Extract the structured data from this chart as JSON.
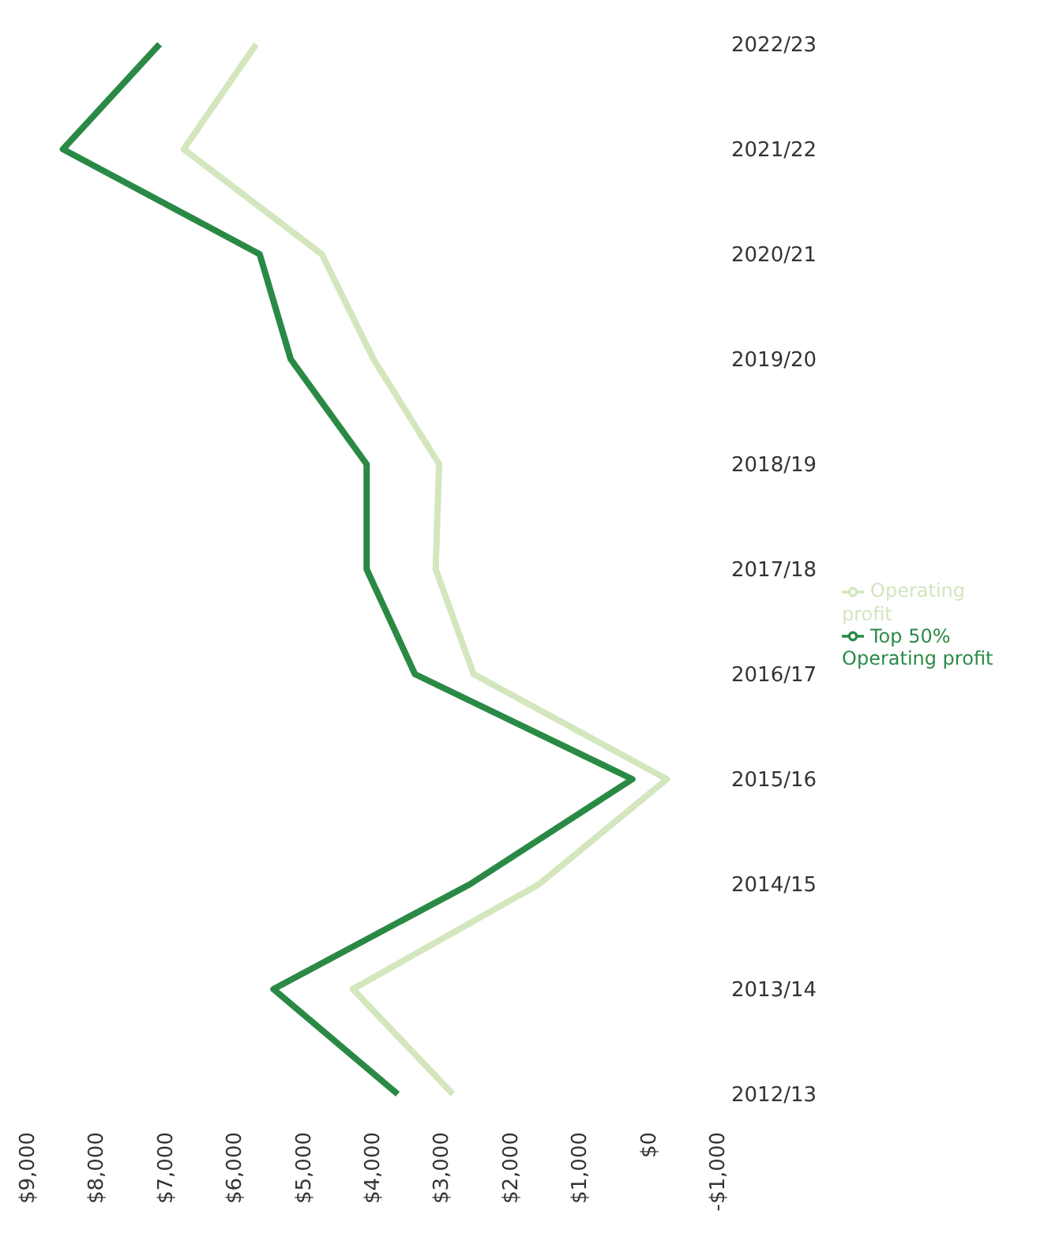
{
  "chart_data": {
    "type": "line",
    "orientation": "horizontal",
    "categories": [
      "2022/23",
      "2021/22",
      "2020/21",
      "2019/20",
      "2018/19",
      "2017/18",
      "2016/17",
      "2015/16",
      "2014/15",
      "2013/14",
      "2012/13"
    ],
    "series": [
      {
        "name": "Operating profit",
        "color": "#d3e6bd",
        "values": [
          5700,
          6750,
          4750,
          4000,
          3050,
          3100,
          2550,
          -250,
          1600,
          4300,
          2850
        ]
      },
      {
        "name": "Top 50% Operating profit",
        "color": "#2a8a45",
        "values": [
          7100,
          8500,
          5650,
          5200,
          4100,
          4100,
          3400,
          250,
          2600,
          5450,
          3650
        ]
      }
    ],
    "xlim": [
      9000,
      -1000
    ],
    "xticks": [
      {
        "value": 9000,
        "label": "$9,000"
      },
      {
        "value": 8000,
        "label": "$8,000"
      },
      {
        "value": 7000,
        "label": "$7,000"
      },
      {
        "value": 6000,
        "label": "$6,000"
      },
      {
        "value": 5000,
        "label": "$5,000"
      },
      {
        "value": 4000,
        "label": "$4,000"
      },
      {
        "value": 3000,
        "label": "$3,000"
      },
      {
        "value": 2000,
        "label": "$2,000"
      },
      {
        "value": 1000,
        "label": "$1,000"
      },
      {
        "value": 0,
        "label": "$0"
      },
      {
        "value": -1000,
        "label": "-$1,000"
      }
    ],
    "grid": false,
    "legend": "right",
    "marker": "none",
    "line_style": "solid"
  }
}
